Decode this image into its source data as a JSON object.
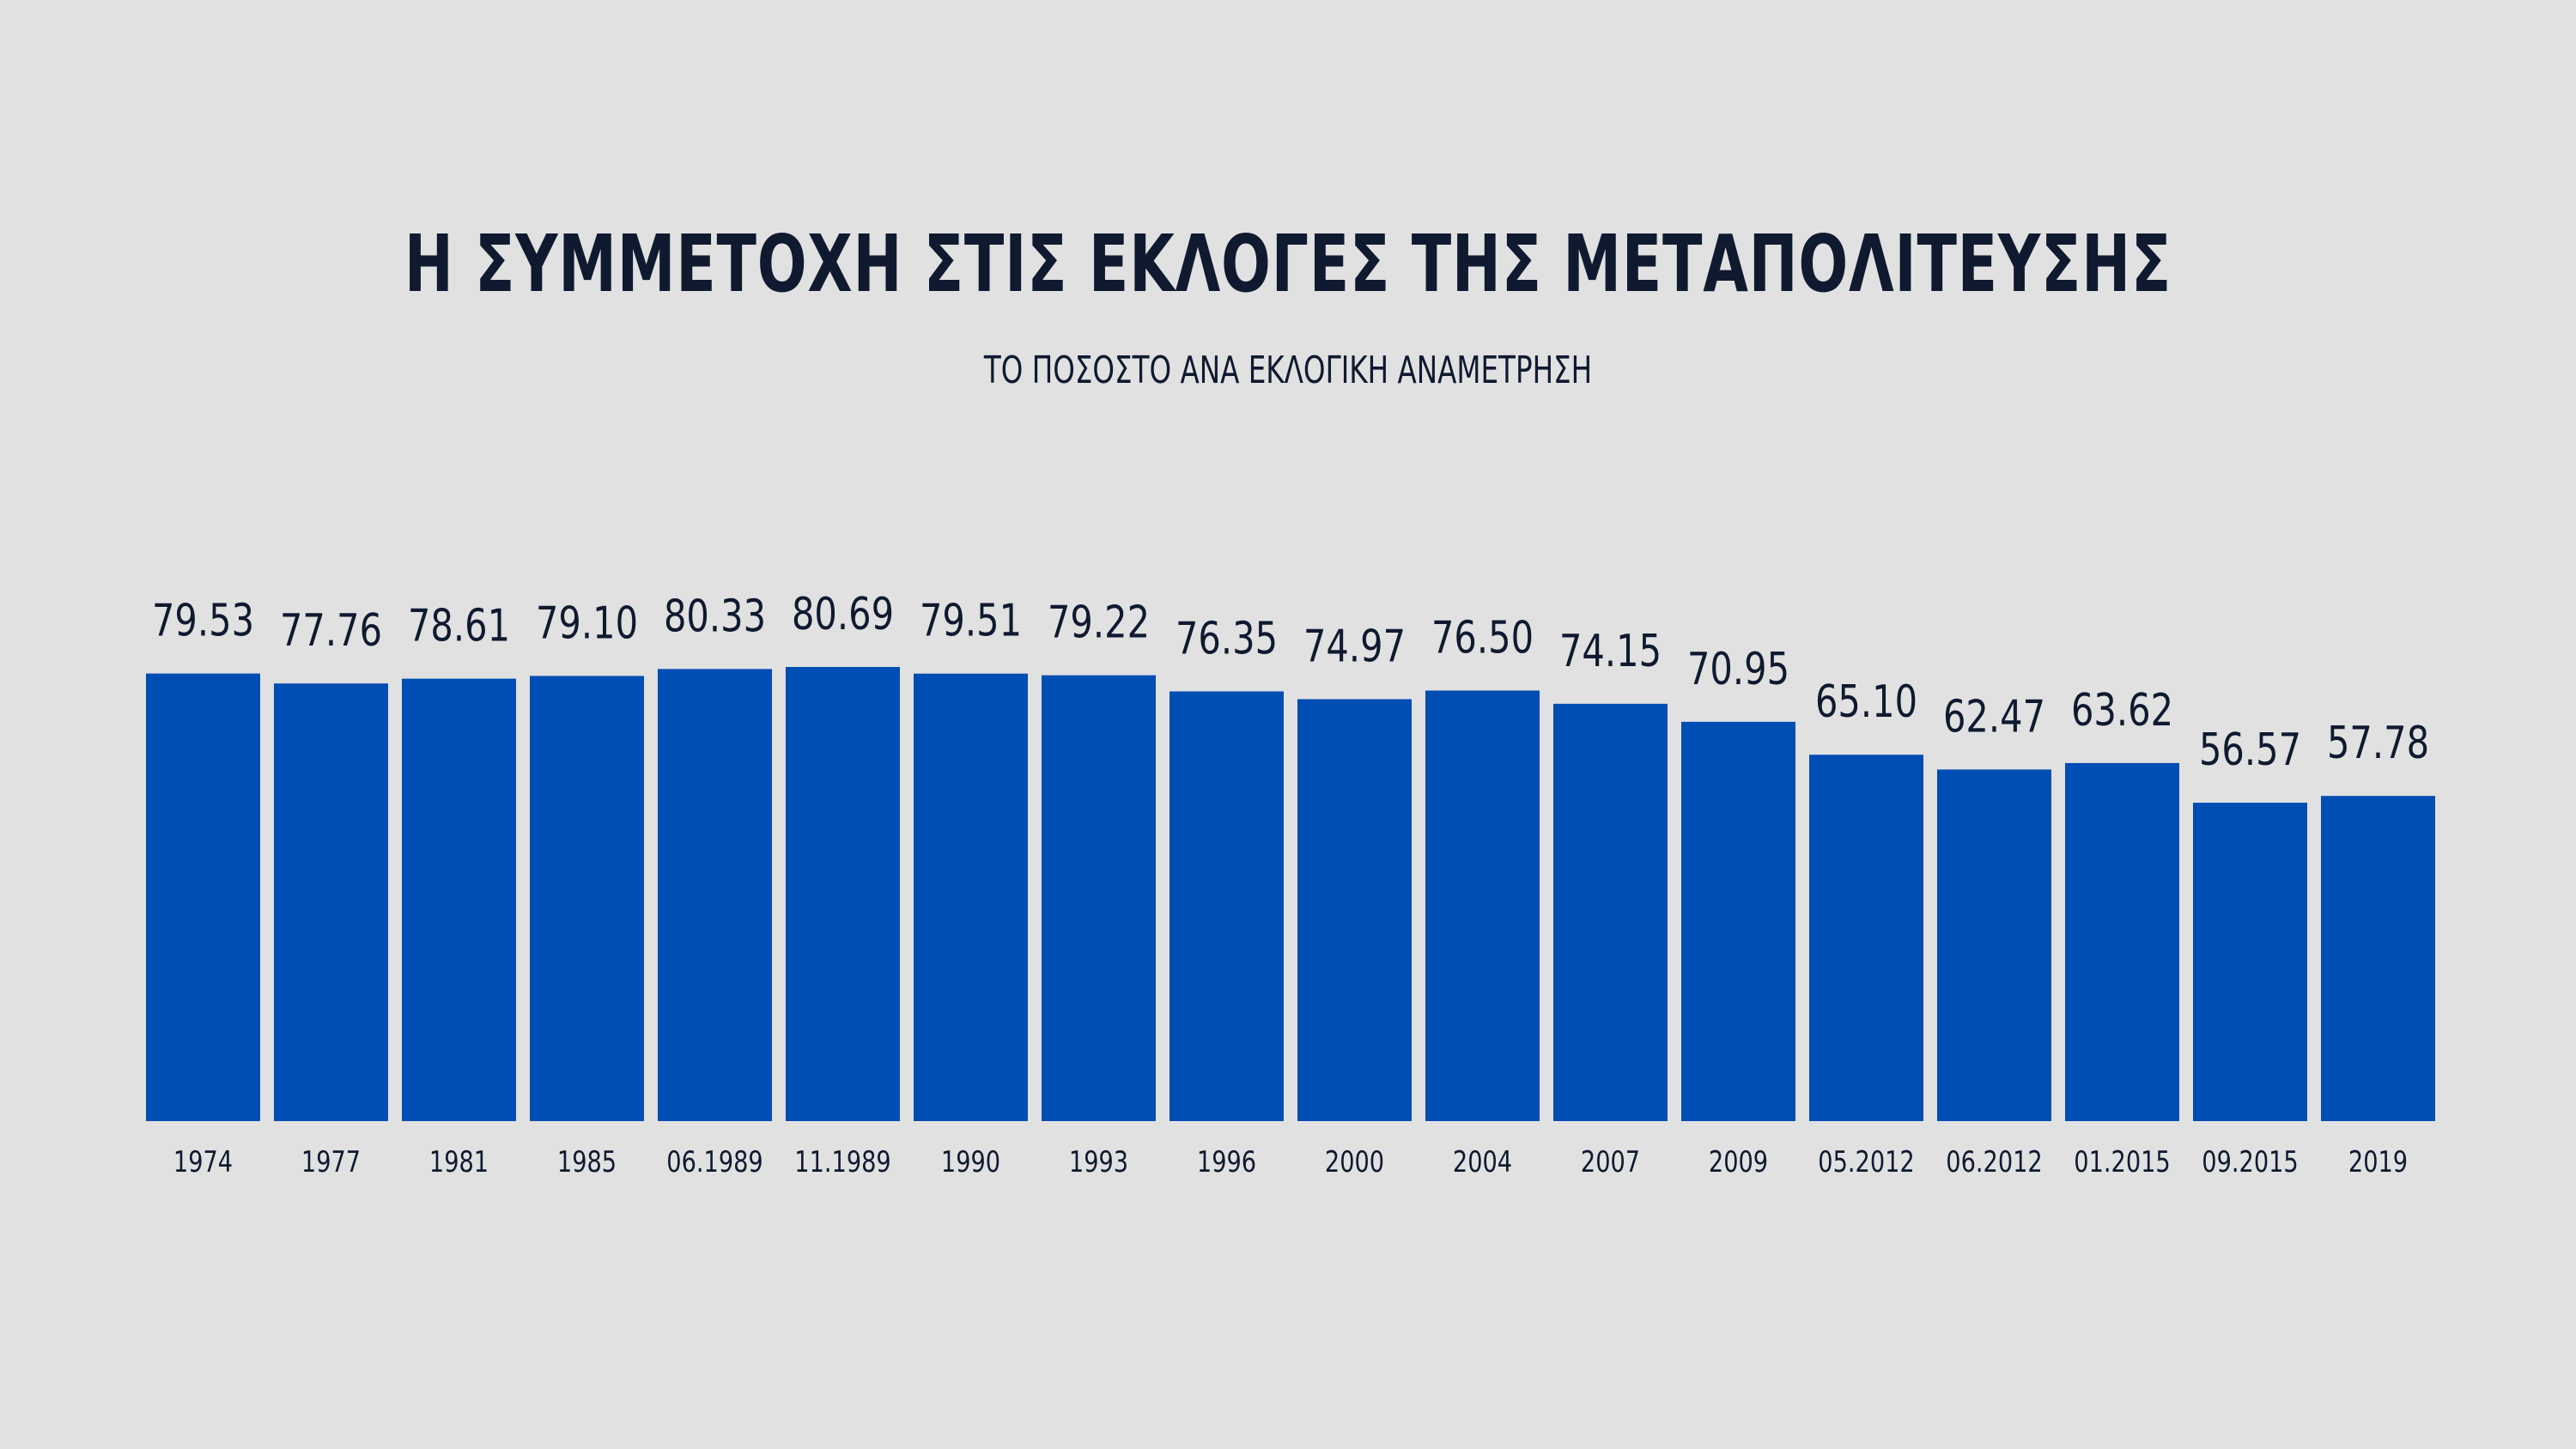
{
  "chart_data": {
    "type": "bar",
    "title": "Η ΣΥΜΜΕΤΟΧΗ ΣΤΙΣ ΕΚΛΟΓΕΣ ΤΗΣ ΜΕΤΑΠΟΛΙΤΕΥΣΗΣ",
    "subtitle": "ΤΟ ΠΟΣΟΣΤΟ ΑΝΑ ΕΚΛΟΓΙΚΗ ΑΝΑΜΕΤΡΗΣΗ",
    "categories": [
      "1974",
      "1977",
      "1981",
      "1985",
      "06.1989",
      "11.1989",
      "1990",
      "1993",
      "1996",
      "2000",
      "2004",
      "2007",
      "2009",
      "05.2012",
      "06.2012",
      "01.2015",
      "09.2015",
      "2019"
    ],
    "values": [
      79.53,
      77.76,
      78.61,
      79.1,
      80.33,
      80.69,
      79.51,
      79.22,
      76.35,
      74.97,
      76.5,
      74.15,
      70.95,
      65.1,
      62.47,
      63.62,
      56.57,
      57.78
    ],
    "value_labels": [
      "79.53",
      "77.76",
      "78.61",
      "79.10",
      "80.33",
      "80.69",
      "79.51",
      "79.22",
      "76.35",
      "74.97",
      "76.50",
      "74.15",
      "70.95",
      "65.10",
      "62.47",
      "63.62",
      "56.57",
      "57.78"
    ],
    "xlabel": "",
    "ylabel": "",
    "ylim": [
      0,
      80.69
    ],
    "grid": false,
    "legend": "none",
    "bar_color": "#004db3",
    "background_color": "#e1e1e1",
    "text_color": "#0f1a30"
  }
}
